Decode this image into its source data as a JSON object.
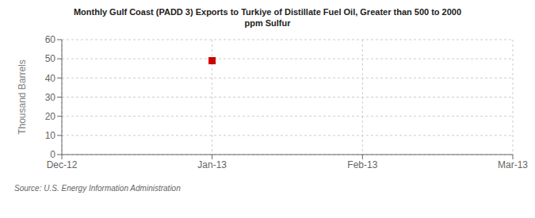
{
  "chart_data": {
    "type": "scatter",
    "title": "Monthly Gulf Coast (PADD 3) Exports to Turkiye of Distillate Fuel Oil, Greater than 500 to 2000\nppm Sulfur",
    "ylabel": "Thousand Barrels",
    "source": "Source: U.S. Energy Information Administration",
    "categories": [
      "Dec-12",
      "Jan-13",
      "Feb-13",
      "Mar-13"
    ],
    "values": [
      null,
      49,
      null,
      null
    ],
    "color": "#cc0000",
    "marker": "square",
    "ylim": [
      0,
      60
    ],
    "yticks": [
      0,
      10,
      20,
      30,
      40,
      50,
      60
    ],
    "grid": true
  }
}
